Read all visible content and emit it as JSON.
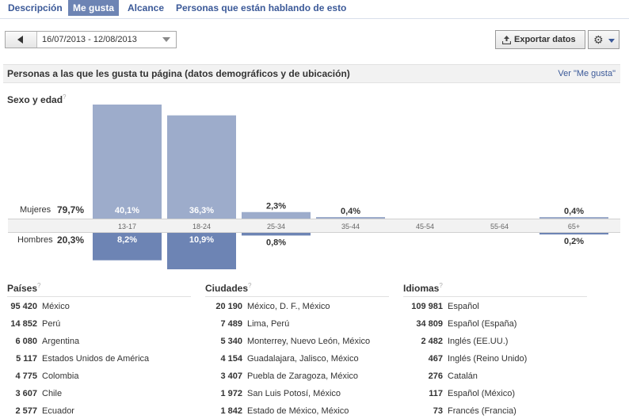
{
  "tabs": [
    {
      "label": "Descripción"
    },
    {
      "label": "Me gusta"
    },
    {
      "label": "Alcance"
    },
    {
      "label": "Personas que están hablando de esto"
    }
  ],
  "toolbar": {
    "date_range": "16/07/2013 - 12/08/2013",
    "export_label": "Exportar datos"
  },
  "section": {
    "title": "Personas a las que les gusta tu página (datos demográficos y de ubicación)",
    "link": "Ver \"Me gusta\""
  },
  "demographics": {
    "title": "Sexo y edad",
    "help": "?",
    "women_label": "Mujeres",
    "women_pct": "79,7%",
    "men_label": "Hombres",
    "men_pct": "20,3%"
  },
  "chart_data": {
    "type": "bar",
    "title": "Sexo y edad",
    "categories": [
      "13-17",
      "18-24",
      "25-34",
      "35-44",
      "45-54",
      "55-64",
      "65+"
    ],
    "series": [
      {
        "name": "Mujeres",
        "values": [
          40.1,
          36.3,
          2.3,
          0.4,
          null,
          null,
          0.4
        ],
        "labels": [
          "40,1%",
          "36,3%",
          "2,3%",
          "0,4%",
          "",
          "",
          "0,4%"
        ],
        "color": "#9daccb"
      },
      {
        "name": "Hombres",
        "values": [
          8.2,
          10.9,
          0.8,
          null,
          null,
          null,
          0.2
        ],
        "labels": [
          "8,2%",
          "10,9%",
          "0,8%",
          "",
          "",
          "",
          "0,2%"
        ],
        "color": "#6d84b4"
      }
    ],
    "ylim": [
      0,
      40.1
    ]
  },
  "countries": {
    "title": "Países",
    "help": "?",
    "rows": [
      {
        "n": "95 420",
        "t": "México"
      },
      {
        "n": "14 852",
        "t": "Perú"
      },
      {
        "n": "6 080",
        "t": "Argentina"
      },
      {
        "n": "5 117",
        "t": "Estados Unidos de América"
      },
      {
        "n": "4 775",
        "t": "Colombia"
      },
      {
        "n": "3 607",
        "t": "Chile"
      },
      {
        "n": "2 577",
        "t": "Ecuador"
      }
    ]
  },
  "cities": {
    "title": "Ciudades",
    "help": "?",
    "rows": [
      {
        "n": "20 190",
        "t": "México, D. F., México"
      },
      {
        "n": "7 489",
        "t": "Lima, Perú"
      },
      {
        "n": "5 340",
        "t": "Monterrey, Nuevo León, México"
      },
      {
        "n": "4 154",
        "t": "Guadalajara, Jalisco, México"
      },
      {
        "n": "3 407",
        "t": "Puebla de Zaragoza, México"
      },
      {
        "n": "1 972",
        "t": "San Luis Potosí, México"
      },
      {
        "n": "1 842",
        "t": "Estado de México, México"
      }
    ]
  },
  "languages": {
    "title": "Idiomas",
    "help": "?",
    "rows": [
      {
        "n": "109 981",
        "t": "Español"
      },
      {
        "n": "34 809",
        "t": "Español (España)"
      },
      {
        "n": "2 482",
        "t": "Inglés (EE.UU.)"
      },
      {
        "n": "467",
        "t": "Inglés (Reino Unido)"
      },
      {
        "n": "276",
        "t": "Catalán"
      },
      {
        "n": "117",
        "t": "Español (México)"
      },
      {
        "n": "73",
        "t": "Francés (Francia)"
      }
    ]
  }
}
